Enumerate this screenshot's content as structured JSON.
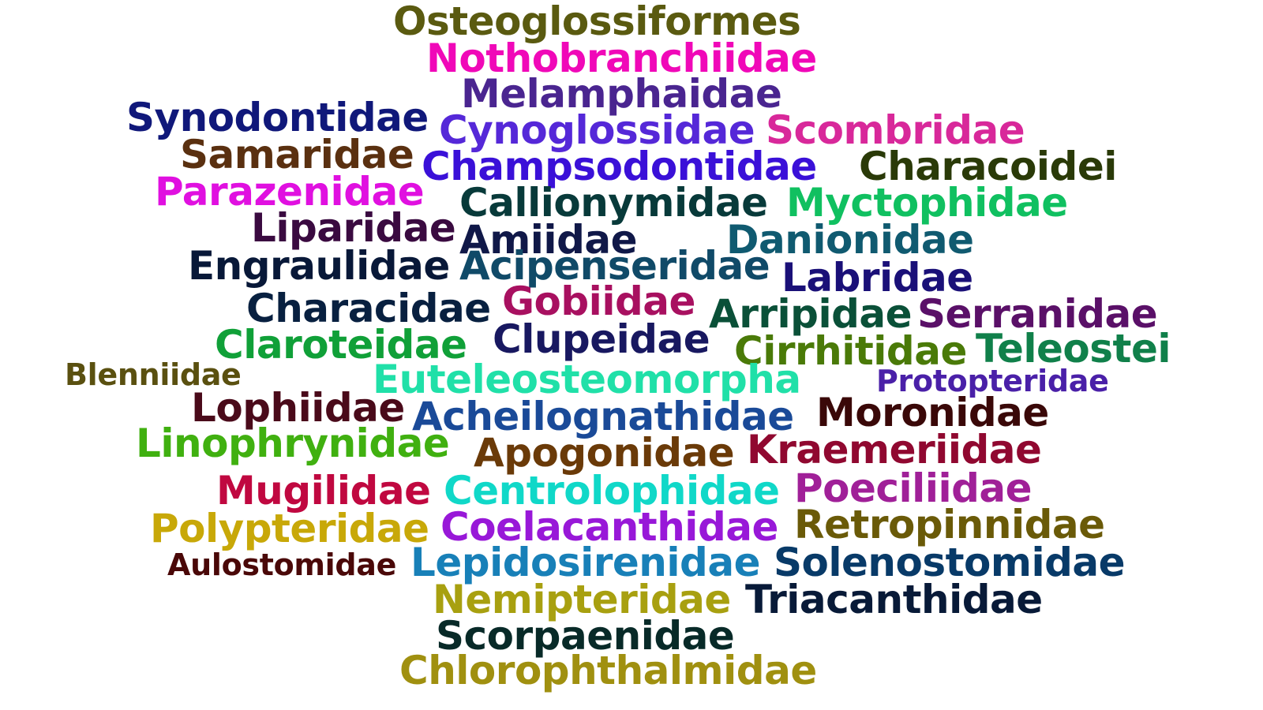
{
  "words": [
    {
      "text": "Osteoglossiformes",
      "color": "#5a5a10"
    },
    {
      "text": "Nothobranchiidae",
      "color": "#f008b8"
    },
    {
      "text": "Melamphaidae",
      "color": "#4a2590"
    },
    {
      "text": "Synodontidae",
      "color": "#10187a"
    },
    {
      "text": "Cynoglossidae",
      "color": "#5528d8"
    },
    {
      "text": "Scombridae",
      "color": "#d8289a"
    },
    {
      "text": "Samaridae",
      "color": "#5a3010"
    },
    {
      "text": "Champsodontidae",
      "color": "#3a10d8"
    },
    {
      "text": "Characoidei",
      "color": "#2a3a08"
    },
    {
      "text": "Parazenidae",
      "color": "#e010e0"
    },
    {
      "text": "Callionymidae",
      "color": "#083a3a"
    },
    {
      "text": "Myctophidae",
      "color": "#10c060"
    },
    {
      "text": "Liparidae",
      "color": "#3a0a40"
    },
    {
      "text": "Amiidae",
      "color": "#101848"
    },
    {
      "text": "Danionidae",
      "color": "#105a70"
    },
    {
      "text": "Engraulidae",
      "color": "#081838"
    },
    {
      "text": "Acipenseridae",
      "color": "#104a68"
    },
    {
      "text": "Labridae",
      "color": "#1a1078"
    },
    {
      "text": "Characidae",
      "color": "#082040"
    },
    {
      "text": "Gobiidae",
      "color": "#a81060"
    },
    {
      "text": "Arripidae",
      "color": "#0a5038"
    },
    {
      "text": "Serranidae",
      "color": "#5a1068"
    },
    {
      "text": "Claroteidae",
      "color": "#10a038"
    },
    {
      "text": "Clupeidae",
      "color": "#181860"
    },
    {
      "text": "Cirrhitidae",
      "color": "#4a7a08"
    },
    {
      "text": "Teleostei",
      "color": "#10804a"
    },
    {
      "text": "Blenniidae",
      "color": "#5a5010"
    },
    {
      "text": "Euteleosteomorpha",
      "color": "#20e0a8"
    },
    {
      "text": "Protopteridae",
      "color": "#4a20a8"
    },
    {
      "text": "Lophiidae",
      "color": "#4a0a1a"
    },
    {
      "text": "Acheilognathidae",
      "color": "#1a4a98"
    },
    {
      "text": "Moronidae",
      "color": "#3a0808"
    },
    {
      "text": "Linophrynidae",
      "color": "#40b010"
    },
    {
      "text": "Apogonidae",
      "color": "#6a3a08"
    },
    {
      "text": "Kraemeriidae",
      "color": "#900830"
    },
    {
      "text": "Mugilidae",
      "color": "#c00840"
    },
    {
      "text": "Centrolophidae",
      "color": "#10d8c8"
    },
    {
      "text": "Poeciliidae",
      "color": "#a02098"
    },
    {
      "text": "Polypteridae",
      "color": "#c8a808"
    },
    {
      "text": "Coelacanthidae",
      "color": "#9818d8"
    },
    {
      "text": "Retropinnidae",
      "color": "#6a5a08"
    },
    {
      "text": "Aulostomidae",
      "color": "#4a0808"
    },
    {
      "text": "Lepidosirenidae",
      "color": "#1880b8"
    },
    {
      "text": "Solenostomidae",
      "color": "#083a68"
    },
    {
      "text": "Nemipteridae",
      "color": "#a8a010"
    },
    {
      "text": "Triacanthidae",
      "color": "#081a38"
    },
    {
      "text": "Scorpaenidae",
      "color": "#082a28"
    },
    {
      "text": "Chlorophthalmidae",
      "color": "#a09010"
    }
  ]
}
